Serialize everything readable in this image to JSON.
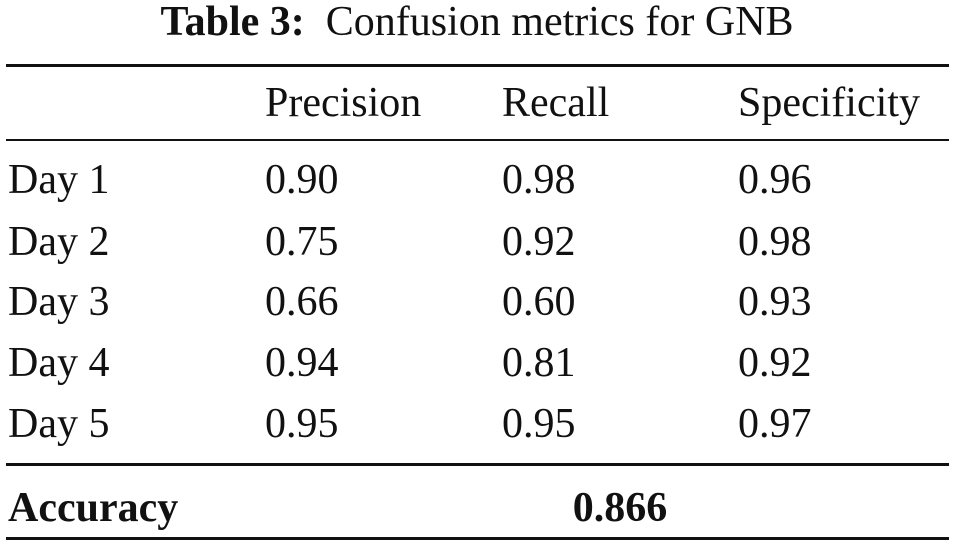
{
  "table": {
    "caption": {
      "label": "Table 3:",
      "text": "Confusion metrics for GNB"
    },
    "header": [
      "Precision",
      "Recall",
      "Specificity"
    ],
    "rows": [
      [
        "Day 1",
        "0.90",
        "0.98",
        "0.96"
      ],
      [
        "Day 2",
        "0.75",
        "0.92",
        "0.98"
      ],
      [
        "Day 3",
        "0.66",
        "0.60",
        "0.93"
      ],
      [
        "Day 4",
        "0.94",
        "0.81",
        "0.92"
      ],
      [
        "Day 5",
        "0.95",
        "0.95",
        "0.97"
      ]
    ],
    "footer": {
      "label": "Accuracy",
      "value": "0.866"
    }
  }
}
